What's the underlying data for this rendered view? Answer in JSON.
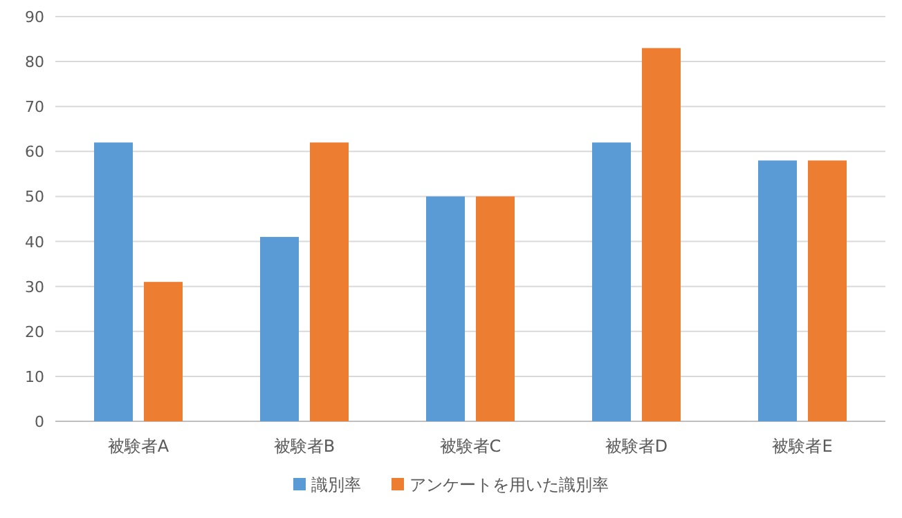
{
  "chart_data": {
    "type": "bar",
    "categories": [
      "被験者A",
      "被験者B",
      "被験者C",
      "被験者D",
      "被験者E"
    ],
    "series": [
      {
        "name": "識別率",
        "color": "#5b9bd5",
        "values": [
          62,
          41,
          50,
          62,
          58
        ]
      },
      {
        "name": "アンケートを用いた識別率",
        "color": "#ed7d31",
        "values": [
          31,
          62,
          50,
          83,
          58
        ]
      }
    ],
    "ylim": [
      0,
      90
    ],
    "yticks": [
      0,
      10,
      20,
      30,
      40,
      50,
      60,
      70,
      80,
      90
    ],
    "grid": "y",
    "legend": "bottom"
  }
}
